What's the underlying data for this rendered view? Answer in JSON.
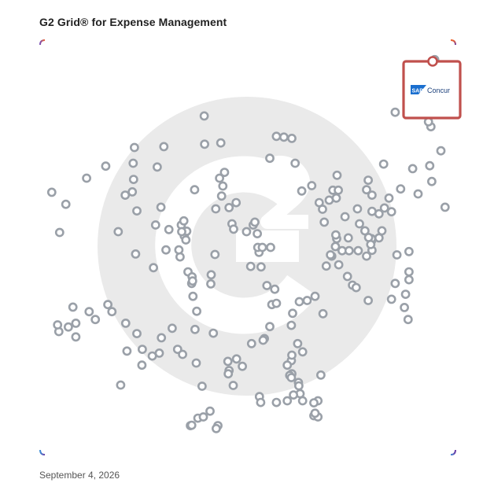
{
  "title": "G2 Grid® for Expense Management",
  "date": "September 4, 2026",
  "colors": {
    "frame_top_left": "#7b4fb4",
    "frame_top_right": "#f0642d",
    "frame_bottom_left": "#3f8fd8",
    "frame_bottom_right": "#6d3aa3",
    "dot": "#9aa0a8",
    "highlight": "#c0504d",
    "watermark": "#eaeaea",
    "sap_blue": "#1a6fcf"
  },
  "highlight": {
    "vendor": "Concur",
    "logo_badge": "SAP"
  },
  "chart_data": {
    "type": "scatter",
    "title": "G2 Grid® for Expense Management",
    "xlabel": "",
    "ylabel": "",
    "xlim": [
      0,
      100
    ],
    "ylim": [
      0,
      100
    ],
    "grid": false,
    "quadrant_dividers": {
      "x": 50,
      "y": 50
    },
    "series": [
      {
        "points": [
          [
            2.8,
            63.3
          ],
          [
            6.2,
            60.4
          ],
          [
            4.7,
            53.6
          ],
          [
            11.2,
            66.7
          ],
          [
            15.8,
            69.6
          ],
          [
            18.8,
            53.8
          ],
          [
            20.5,
            62.6
          ],
          [
            22.2,
            63.4
          ],
          [
            22.5,
            66.4
          ],
          [
            22.4,
            70.3
          ],
          [
            22.7,
            74.1
          ],
          [
            23.3,
            58.8
          ],
          [
            27.8,
            55.4
          ],
          [
            28.2,
            69.4
          ],
          [
            29.1,
            59.7
          ],
          [
            29.8,
            74.3
          ],
          [
            30.3,
            49.4
          ],
          [
            31.0,
            54.3
          ],
          [
            34.7,
            52.8
          ],
          [
            35.3,
            53.9
          ],
          [
            35.1,
            51.8
          ],
          [
            33.7,
            47.7
          ],
          [
            37.2,
            63.9
          ],
          [
            39.6,
            74.9
          ],
          [
            42.3,
            59.3
          ],
          [
            45.5,
            59.6
          ],
          [
            46.2,
            55.7
          ],
          [
            46.6,
            54.4
          ],
          [
            47.2,
            60.8
          ],
          [
            43.2,
            66.7
          ],
          [
            44.0,
            64.8
          ],
          [
            44.4,
            68.1
          ],
          [
            43.7,
            62.4
          ],
          [
            39.5,
            81.7
          ],
          [
            43.5,
            75.2
          ],
          [
            23.0,
            48.4
          ],
          [
            27.3,
            45.1
          ],
          [
            33.4,
            49.4
          ],
          [
            34.0,
            55.4
          ],
          [
            34.6,
            56.4
          ],
          [
            34.1,
            53.8
          ],
          [
            36.5,
            41.3
          ],
          [
            35.6,
            44.1
          ],
          [
            36.6,
            42.9
          ],
          [
            41.2,
            43.4
          ],
          [
            42.1,
            48.3
          ],
          [
            49.7,
            53.8
          ],
          [
            51.3,
            55.4
          ],
          [
            51.7,
            56.1
          ],
          [
            52.3,
            53.3
          ],
          [
            52.7,
            48.8
          ],
          [
            52.4,
            50.0
          ],
          [
            53.5,
            50.0
          ],
          [
            55.5,
            50.0
          ],
          [
            55.3,
            71.5
          ],
          [
            56.9,
            76.8
          ],
          [
            58.7,
            76.6
          ],
          [
            60.6,
            76.3
          ],
          [
            61.4,
            70.3
          ],
          [
            63.0,
            63.6
          ],
          [
            65.4,
            64.9
          ],
          [
            67.2,
            60.8
          ],
          [
            68.0,
            59.2
          ],
          [
            70.5,
            63.8
          ],
          [
            71.8,
            63.8
          ],
          [
            73.4,
            57.4
          ],
          [
            74.2,
            52.3
          ],
          [
            76.4,
            59.3
          ],
          [
            76.9,
            55.7
          ],
          [
            78.2,
            54.0
          ],
          [
            68.4,
            56.1
          ],
          [
            69.6,
            61.4
          ],
          [
            71.5,
            67.4
          ],
          [
            71.3,
            61.9
          ],
          [
            70.2,
            47.9
          ],
          [
            72.7,
            49.2
          ],
          [
            74.4,
            49.2
          ],
          [
            76.6,
            49.2
          ],
          [
            78.6,
            47.9
          ],
          [
            79.8,
            51.6
          ],
          [
            79.8,
            52.1
          ],
          [
            79.1,
            52.4
          ],
          [
            81.6,
            52.3
          ],
          [
            82.3,
            54.0
          ],
          [
            71.1,
            50.2
          ],
          [
            69.9,
            48.2
          ],
          [
            68.9,
            45.5
          ],
          [
            71.9,
            45.8
          ],
          [
            74.0,
            43.0
          ],
          [
            75.2,
            40.9
          ],
          [
            76.1,
            40.3
          ],
          [
            71.4,
            52.1
          ],
          [
            71.2,
            53.0
          ],
          [
            78.6,
            63.9
          ],
          [
            79.9,
            62.6
          ],
          [
            79.9,
            58.7
          ],
          [
            81.6,
            58.1
          ],
          [
            79.9,
            49.3
          ],
          [
            79.6,
            50.7
          ],
          [
            82.7,
            70.1
          ],
          [
            84.0,
            61.9
          ],
          [
            79.0,
            66.2
          ],
          [
            82.9,
            59.5
          ],
          [
            84.6,
            58.6
          ],
          [
            85.9,
            48.2
          ],
          [
            85.5,
            41.3
          ],
          [
            84.6,
            37.5
          ],
          [
            88.8,
            49.0
          ],
          [
            88.8,
            44.1
          ],
          [
            88.8,
            42.2
          ],
          [
            88.0,
            38.7
          ],
          [
            87.7,
            35.5
          ],
          [
            88.6,
            32.6
          ],
          [
            79.0,
            37.2
          ],
          [
            68.1,
            34.0
          ],
          [
            66.2,
            38.2
          ],
          [
            64.3,
            37.2
          ],
          [
            62.4,
            36.9
          ],
          [
            60.8,
            34.1
          ],
          [
            56.5,
            39.9
          ],
          [
            54.6,
            40.8
          ],
          [
            53.2,
            45.3
          ],
          [
            50.7,
            45.4
          ],
          [
            41.1,
            41.2
          ],
          [
            37.7,
            34.6
          ],
          [
            37.3,
            30.2
          ],
          [
            31.8,
            30.5
          ],
          [
            29.2,
            28.2
          ],
          [
            23.3,
            29.2
          ],
          [
            20.6,
            31.7
          ],
          [
            20.9,
            25.0
          ],
          [
            16.3,
            36.2
          ],
          [
            17.3,
            34.5
          ],
          [
            13.3,
            32.6
          ],
          [
            11.8,
            34.5
          ],
          [
            8.6,
            28.4
          ],
          [
            8.6,
            31.7
          ],
          [
            7.9,
            35.6
          ],
          [
            6.8,
            30.8
          ],
          [
            4.5,
            29.7
          ],
          [
            4.2,
            31.3
          ],
          [
            24.6,
            25.4
          ],
          [
            24.5,
            21.6
          ],
          [
            19.4,
            16.8
          ],
          [
            27.0,
            23.8
          ],
          [
            28.7,
            24.5
          ],
          [
            33.1,
            25.4
          ],
          [
            34.3,
            24.2
          ],
          [
            37.6,
            22.1
          ],
          [
            45.2,
            22.5
          ],
          [
            45.5,
            20.3
          ],
          [
            45.3,
            19.5
          ],
          [
            48.7,
            21.3
          ],
          [
            50.9,
            26.8
          ],
          [
            54.0,
            28.0
          ],
          [
            53.7,
            27.6
          ],
          [
            55.3,
            30.9
          ],
          [
            55.8,
            36.2
          ],
          [
            56.9,
            36.5
          ],
          [
            60.5,
            31.2
          ],
          [
            62.0,
            26.8
          ],
          [
            60.5,
            22.7
          ],
          [
            59.5,
            21.6
          ],
          [
            63.2,
            24.8
          ],
          [
            60.6,
            24.0
          ],
          [
            60.6,
            19.5
          ],
          [
            60.1,
            19.1
          ],
          [
            60.5,
            18.6
          ],
          [
            62.2,
            17.4
          ],
          [
            62.3,
            16.6
          ],
          [
            62.6,
            14.7
          ],
          [
            67.6,
            19.2
          ],
          [
            66.9,
            13.0
          ],
          [
            47.3,
            23.1
          ],
          [
            41.7,
            29.3
          ],
          [
            36.8,
            38.2
          ],
          [
            36.7,
            41.9
          ],
          [
            46.5,
            16.7
          ],
          [
            40.9,
            10.5
          ],
          [
            38.0,
            8.8
          ],
          [
            39.3,
            9.1
          ],
          [
            36.2,
            7.0
          ],
          [
            36.5,
            7.1
          ],
          [
            39.0,
            16.5
          ],
          [
            42.8,
            7.0
          ],
          [
            42.4,
            6.3
          ],
          [
            52.8,
            14.0
          ],
          [
            53.1,
            12.6
          ],
          [
            56.9,
            12.6
          ],
          [
            59.5,
            13.0
          ],
          [
            61.0,
            14.4
          ],
          [
            63.2,
            13.0
          ],
          [
            65.9,
            12.5
          ],
          [
            65.9,
            9.4
          ],
          [
            66.9,
            9.1
          ],
          [
            66.2,
            10.0
          ],
          [
            91.0,
            62.9
          ],
          [
            86.8,
            64.1
          ],
          [
            89.7,
            69.0
          ],
          [
            93.8,
            69.7
          ],
          [
            94.3,
            65.9
          ],
          [
            96.5,
            73.3
          ],
          [
            94.1,
            79.1
          ],
          [
            85.5,
            82.6
          ],
          [
            88.8,
            87.0
          ],
          [
            93.5,
            80.3
          ],
          [
            97.5,
            59.7
          ]
        ]
      }
    ],
    "highlighted_point": {
      "label": "Concur",
      "x": 95.0,
      "y": 95.3
    }
  }
}
